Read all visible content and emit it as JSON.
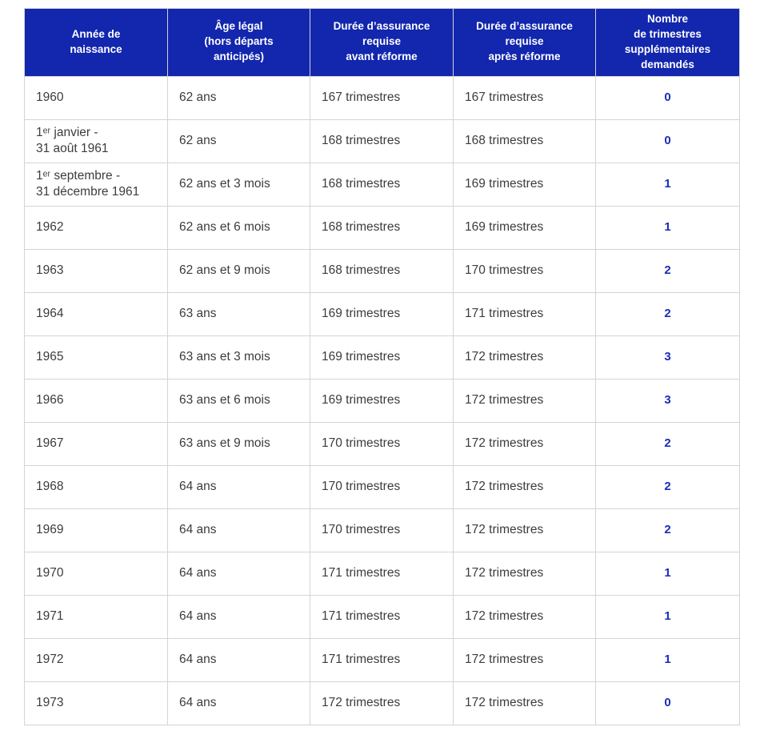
{
  "chart_data": {
    "type": "table",
    "columns": [
      "Année de\nnaissance",
      "Âge légal\n(hors départs\nanticipés)",
      "Durée d’assurance\nrequise\navant réforme",
      "Durée d’assurance\nrequise\naprès réforme",
      "Nombre\nde trimestres\nsupplémentaires\ndemandés"
    ],
    "rows": [
      [
        "1960",
        "62 ans",
        "167 trimestres",
        "167 trimestres",
        "0"
      ],
      [
        "1ᵉʳ janvier -\n31 août 1961",
        "62 ans",
        "168 trimestres",
        "168 trimestres",
        "0"
      ],
      [
        "1ᵉʳ septembre -\n31 décembre 1961",
        "62 ans et 3 mois",
        "168 trimestres",
        "169 trimestres",
        "1"
      ],
      [
        "1962",
        "62 ans et 6 mois",
        "168 trimestres",
        "169 trimestres",
        "1"
      ],
      [
        "1963",
        "62 ans et 9 mois",
        "168 trimestres",
        "170 trimestres",
        "2"
      ],
      [
        "1964",
        "63 ans",
        "169 trimestres",
        "171 trimestres",
        "2"
      ],
      [
        "1965",
        "63 ans et 3 mois",
        "169 trimestres",
        "172 trimestres",
        "3"
      ],
      [
        "1966",
        "63 ans et 6 mois",
        "169 trimestres",
        "172 trimestres",
        "3"
      ],
      [
        "1967",
        "63 ans et 9 mois",
        "170 trimestres",
        "172 trimestres",
        "2"
      ],
      [
        "1968",
        "64 ans",
        "170 trimestres",
        "172 trimestres",
        "2"
      ],
      [
        "1969",
        "64 ans",
        "170 trimestres",
        "172 trimestres",
        "2"
      ],
      [
        "1970",
        "64 ans",
        "171 trimestres",
        "172 trimestres",
        "1"
      ],
      [
        "1971",
        "64 ans",
        "171 trimestres",
        "172 trimestres",
        "1"
      ],
      [
        "1972",
        "64 ans",
        "171 trimestres",
        "172 trimestres",
        "1"
      ],
      [
        "1973",
        "64 ans",
        "172 trimestres",
        "172 trimestres",
        "0"
      ]
    ]
  },
  "colors": {
    "page_background": "#ffffff",
    "header_background": "#1226ae",
    "header_text": "#ffffff",
    "body_text": "#3c3c3c",
    "accent_number": "#1b2eb3",
    "border": "#d4d4d4"
  }
}
